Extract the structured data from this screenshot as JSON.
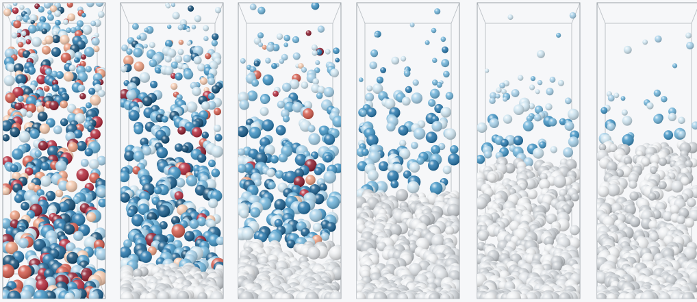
{
  "figure": {
    "panel_count": 6,
    "description_label": "",
    "panels": [
      {
        "mix_level": 1.0,
        "settled_fraction": 0.0,
        "dense_fraction": 1.0,
        "warm_fraction": 0.3
      },
      {
        "mix_level": 0.8,
        "settled_fraction": 0.1,
        "dense_fraction": 0.92,
        "warm_fraction": 0.12
      },
      {
        "mix_level": 0.62,
        "settled_fraction": 0.18,
        "dense_fraction": 0.85,
        "warm_fraction": 0.06
      },
      {
        "mix_level": 0.45,
        "settled_fraction": 0.35,
        "dense_fraction": 0.78,
        "warm_fraction": 0.02
      },
      {
        "mix_level": 0.3,
        "settled_fraction": 0.46,
        "dense_fraction": 0.74,
        "warm_fraction": 0.0
      },
      {
        "mix_level": 0.18,
        "settled_fraction": 0.52,
        "dense_fraction": 0.7,
        "warm_fraction": 0.0
      }
    ]
  },
  "palette": {
    "background": "#f6f7f9",
    "box_edge": "#9aa0a6",
    "settled_grey": [
      "#dfe3e7",
      "#c9ced3",
      "#eef0f2"
    ],
    "blue_scale": [
      "#cfe6f2",
      "#a6d1ea",
      "#6db3da",
      "#3e93c5",
      "#2577ad",
      "#165c8c",
      "#0f4a73"
    ],
    "warm_scale": [
      "#f6cbb0",
      "#ec9d7e",
      "#d45a4b",
      "#b4283a",
      "#8c1a2c"
    ]
  }
}
